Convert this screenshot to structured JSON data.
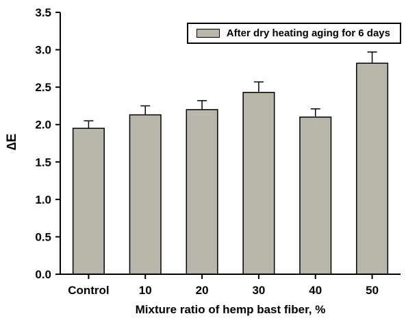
{
  "chart_data": {
    "type": "bar",
    "title": "",
    "legend": "After dry heating aging for 6 days",
    "categories": [
      "Control",
      "10",
      "20",
      "30",
      "40",
      "50"
    ],
    "values": [
      1.95,
      2.13,
      2.2,
      2.43,
      2.1,
      2.82
    ],
    "errors": [
      0.1,
      0.12,
      0.12,
      0.14,
      0.11,
      0.15
    ],
    "xlabel": "Mixture ratio of hemp bast fiber, %",
    "ylabel": "∆E",
    "ylim": [
      0.0,
      3.5
    ],
    "ytick_step": 0.5,
    "ytick_decimals": 1,
    "bar_color": "#b9b7ab",
    "bar_edge_color": "#000000",
    "axis_color": "#000000",
    "background_color": "#ffffff",
    "legend_position": "top-right-inside",
    "grid": false
  }
}
